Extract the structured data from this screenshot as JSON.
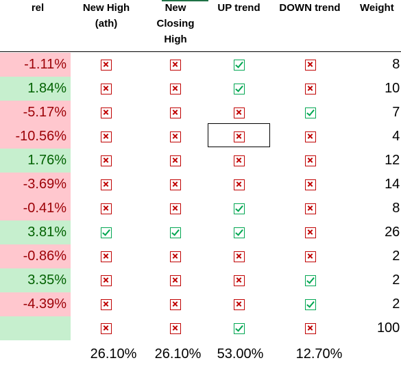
{
  "headers": {
    "rel": "rel",
    "new_high": "New High\n(ath)",
    "new_closing_high": "New\nClosing\nHigh",
    "up_trend": "UP trend",
    "down_trend": "DOWN trend",
    "weight": "Weight"
  },
  "colors": {
    "neg_fill": "#ffc7ce",
    "neg_text": "#9c0006",
    "pos_fill": "#c6efce",
    "pos_text": "#006100",
    "check": "#00a651",
    "cross": "#c00000"
  },
  "rows": [
    {
      "rel": "-1.11%",
      "sign": "neg",
      "new_high": "cross",
      "new_closing_high": "cross",
      "up_trend": "check",
      "down_trend": "cross",
      "weight": "8.1"
    },
    {
      "rel": "1.84%",
      "sign": "pos",
      "new_high": "cross",
      "new_closing_high": "cross",
      "up_trend": "check",
      "down_trend": "cross",
      "weight": "10.1"
    },
    {
      "rel": "-5.17%",
      "sign": "neg",
      "new_high": "cross",
      "new_closing_high": "cross",
      "up_trend": "cross",
      "down_trend": "check",
      "weight": "7.2"
    },
    {
      "rel": "-10.56%",
      "sign": "neg",
      "new_high": "cross",
      "new_closing_high": "cross",
      "up_trend": "cross",
      "down_trend": "cross",
      "weight": "4.6"
    },
    {
      "rel": "1.76%",
      "sign": "pos",
      "new_high": "cross",
      "new_closing_high": "cross",
      "up_trend": "cross",
      "down_trend": "cross",
      "weight": "12.9"
    },
    {
      "rel": "-3.69%",
      "sign": "neg",
      "new_high": "cross",
      "new_closing_high": "cross",
      "up_trend": "cross",
      "down_trend": "cross",
      "weight": "14.2"
    },
    {
      "rel": "-0.41%",
      "sign": "neg",
      "new_high": "cross",
      "new_closing_high": "cross",
      "up_trend": "check",
      "down_trend": "cross",
      "weight": "8.7"
    },
    {
      "rel": "3.81%",
      "sign": "pos",
      "new_high": "check",
      "new_closing_high": "check",
      "up_trend": "check",
      "down_trend": "cross",
      "weight": "26.1"
    },
    {
      "rel": "-0.86%",
      "sign": "neg",
      "new_high": "cross",
      "new_closing_high": "cross",
      "up_trend": "cross",
      "down_trend": "cross",
      "weight": "2.6"
    },
    {
      "rel": "3.35%",
      "sign": "pos",
      "new_high": "cross",
      "new_closing_high": "cross",
      "up_trend": "cross",
      "down_trend": "check",
      "weight": "2.6"
    },
    {
      "rel": "-4.39%",
      "sign": "neg",
      "new_high": "cross",
      "new_closing_high": "cross",
      "up_trend": "cross",
      "down_trend": "check",
      "weight": "2.9"
    },
    {
      "rel": "",
      "sign": "none",
      "new_high": "cross",
      "new_closing_high": "cross",
      "up_trend": "check",
      "down_trend": "cross",
      "weight": "100.0"
    }
  ],
  "totals": {
    "new_high": "26.10%",
    "new_closing_high": "26.10%",
    "up_trend": "53.00%",
    "down_trend": "12.70%"
  }
}
